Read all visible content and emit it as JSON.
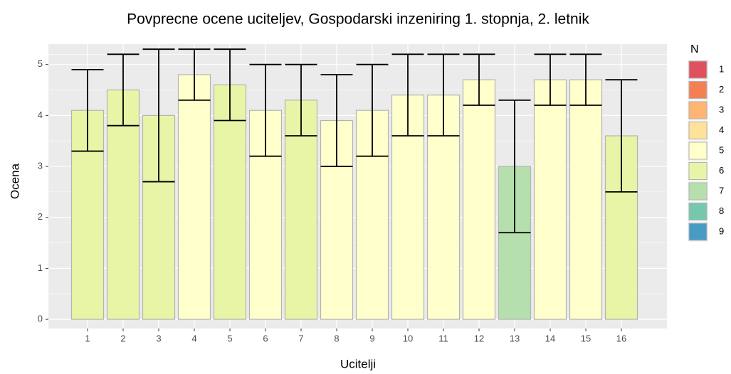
{
  "chart_data": {
    "type": "bar",
    "title": "Povprecne ocene uciteljev, Gospodarski inzeniring 1. stopnja, 2. letnik",
    "x_label": "Ucitelji",
    "y_label": "Ocena",
    "categories": [
      "1",
      "2",
      "3",
      "4",
      "5",
      "6",
      "7",
      "8",
      "9",
      "10",
      "11",
      "12",
      "13",
      "14",
      "15",
      "16"
    ],
    "values": [
      4.1,
      4.5,
      4.0,
      4.8,
      4.6,
      4.1,
      4.3,
      3.9,
      4.1,
      4.4,
      4.4,
      4.7,
      3.0,
      4.7,
      4.7,
      3.6
    ],
    "errors": [
      0.8,
      0.7,
      1.3,
      0.5,
      0.7,
      0.9,
      0.7,
      0.9,
      0.9,
      0.8,
      0.8,
      0.5,
      1.3,
      0.5,
      0.5,
      1.1
    ],
    "n": [
      6,
      6,
      6,
      5,
      6,
      5,
      6,
      5,
      5,
      5,
      5,
      5,
      7,
      5,
      5,
      6
    ],
    "ylim": [
      -0.18,
      5.4
    ],
    "yticks": [
      0,
      1,
      2,
      3,
      4,
      5
    ],
    "grid": true,
    "legend": {
      "title": "N",
      "position": "right",
      "levels": [
        1,
        2,
        3,
        4,
        5,
        6,
        7,
        8,
        9
      ],
      "colors": [
        "#DE525E",
        "#F57F55",
        "#FDB571",
        "#FEE29A",
        "#FFFFCC",
        "#E8F5A6",
        "#B5E0AE",
        "#75C8AE",
        "#479BC4"
      ]
    }
  }
}
